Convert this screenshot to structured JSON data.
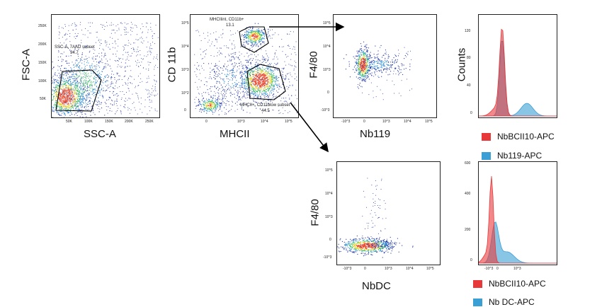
{
  "chart_data": [
    {
      "id": "p1",
      "type": "scatter",
      "xlabel": "SSC-A",
      "ylabel": "FSC-A",
      "xticks": [
        "50K",
        "100K",
        "150K",
        "200K",
        "250K"
      ],
      "yticks": [
        "250K",
        "200K",
        "150K",
        "100K",
        "50K"
      ],
      "gate": {
        "name": "SSC-A, 7AAD subset",
        "value": "94.7"
      }
    },
    {
      "id": "p2",
      "type": "scatter",
      "xlabel": "MHCII",
      "ylabel": "CD 11b",
      "xticks": [
        "0",
        "10^3",
        "10^4",
        "10^5"
      ],
      "yticks": [
        "10^5",
        "10^4",
        "10^3",
        "10^2",
        "0"
      ],
      "gates": [
        {
          "name": "MHCIIint, CD11b+",
          "value": "13.1"
        },
        {
          "name": "MHCII+, CD11blow subset",
          "value": "44.5"
        }
      ]
    },
    {
      "id": "p3",
      "type": "scatter",
      "xlabel": "Nb119",
      "ylabel": "F4/80",
      "xticks": [
        "-10^3",
        "0",
        "10^3",
        "10^4",
        "10^5"
      ],
      "yticks": [
        "10^5",
        "10^4",
        "10^3",
        "0",
        "-10^3"
      ]
    },
    {
      "id": "p4",
      "type": "area",
      "ylabel": "Counts",
      "yticks": [
        "120",
        "80",
        "40",
        "0"
      ],
      "series": [
        {
          "name": "NbBCII10-APC",
          "color": "#e8393a"
        },
        {
          "name": "Nb119-APC",
          "color": "#3a9fd4"
        }
      ]
    },
    {
      "id": "p5",
      "type": "scatter",
      "xlabel": "NbDC",
      "ylabel": "F4/80",
      "xticks": [
        "-10^3",
        "0",
        "10^3",
        "10^4",
        "10^5"
      ],
      "yticks": [
        "10^5",
        "10^4",
        "10^3",
        "0",
        "-10^3"
      ]
    },
    {
      "id": "p6",
      "type": "area",
      "yticks": [
        "600",
        "400",
        "200",
        "0"
      ],
      "xticks": [
        "-10^3",
        "0",
        "10^3"
      ],
      "series": [
        {
          "name": "NbBCII10-APC",
          "color": "#e8393a"
        },
        {
          "name": "Nb DC-APC",
          "color": "#3a9fd4"
        }
      ]
    }
  ],
  "legend_top": [
    {
      "label": "NbBCII10-APC",
      "color": "#e8393a"
    },
    {
      "label": "Nb119-APC",
      "color": "#3a9fd4"
    }
  ],
  "legend_bottom": [
    {
      "label": "NbBCII10-APC",
      "color": "#e8393a"
    },
    {
      "label": "Nb DC-APC",
      "color": "#3a9fd4"
    }
  ]
}
